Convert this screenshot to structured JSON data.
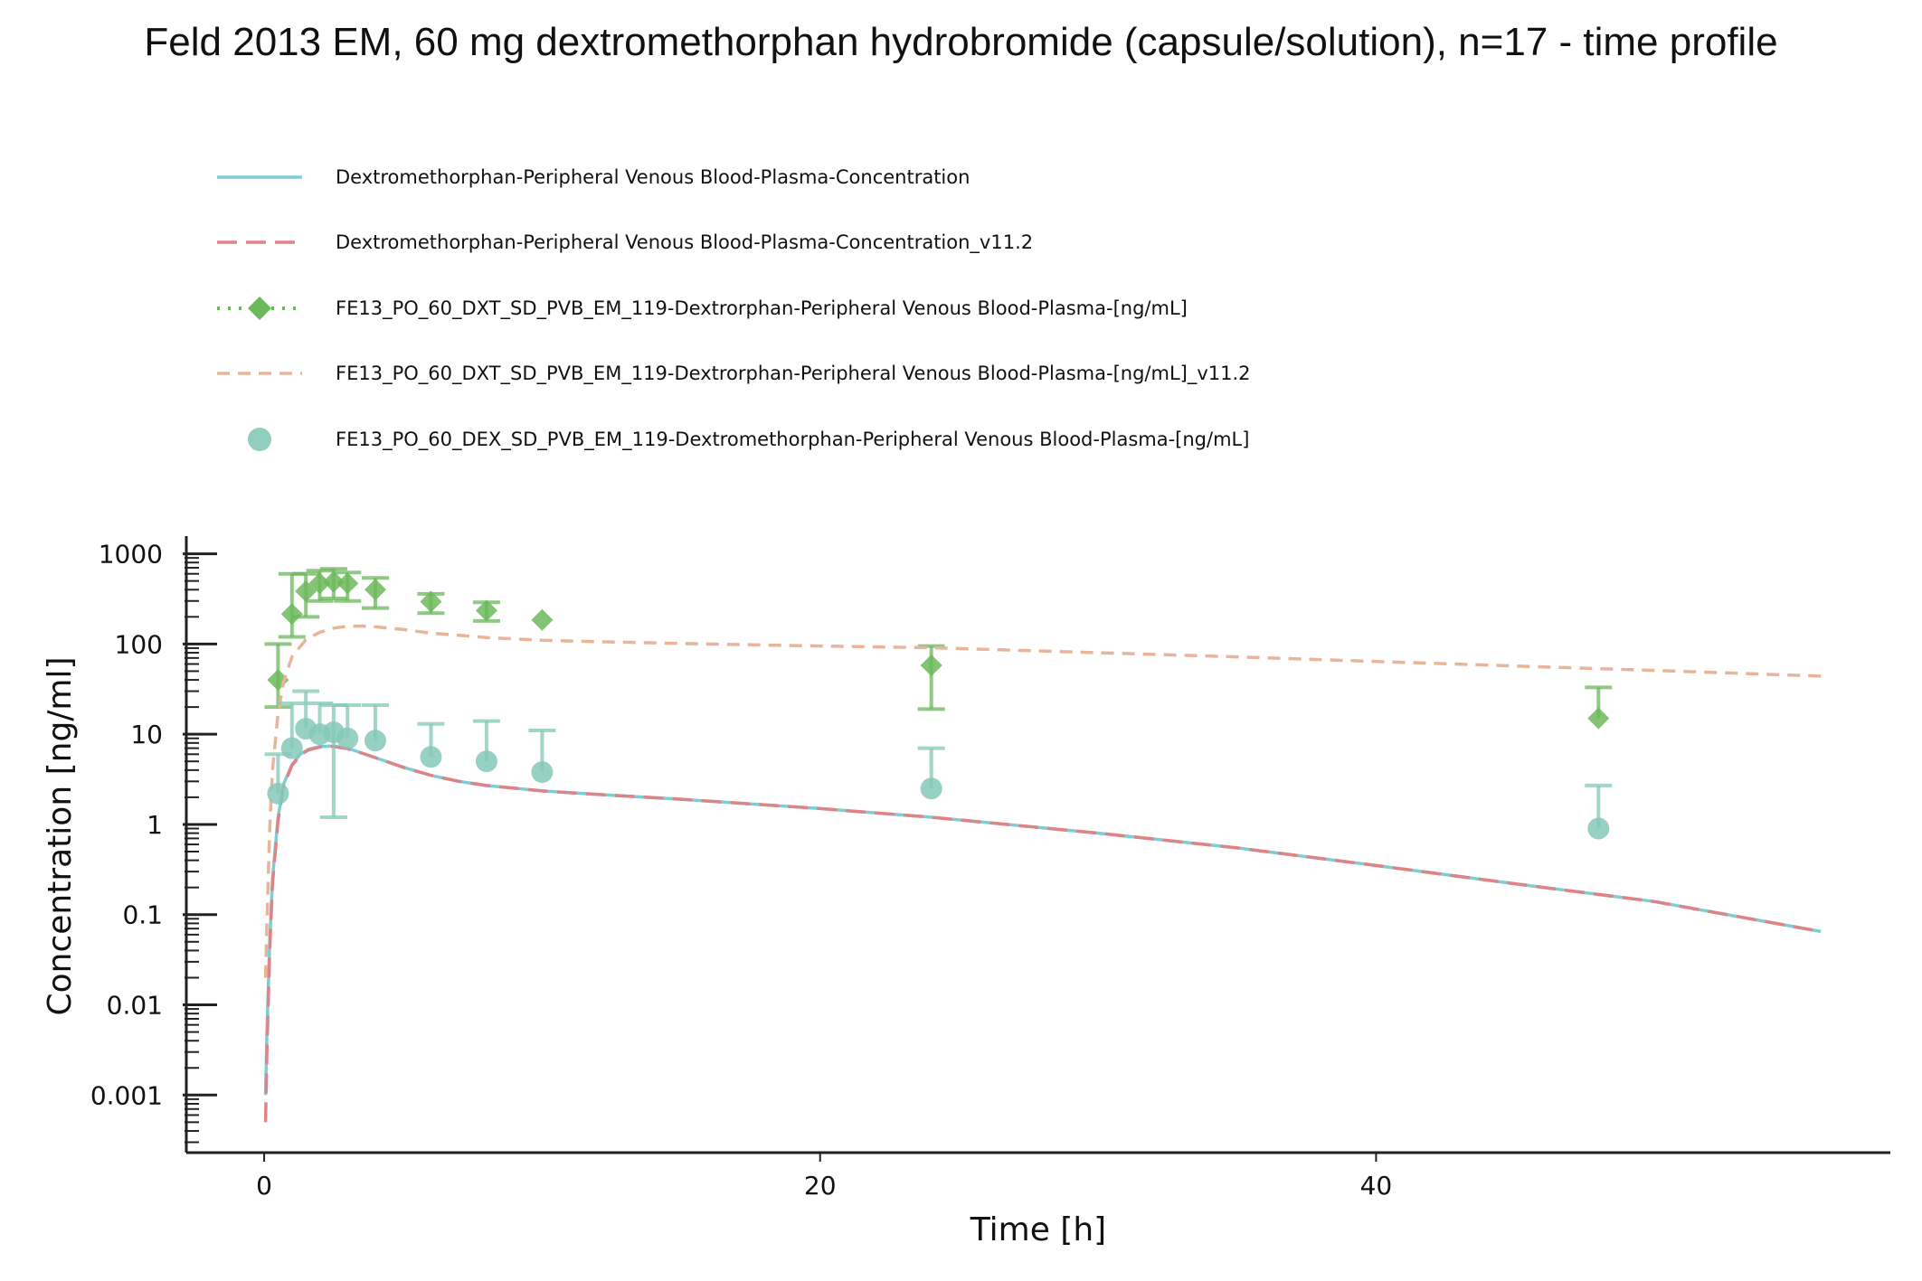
{
  "chart_data": {
    "type": "line",
    "title": "Feld 2013 EM, 60 mg dextromethorphan hydrobromide (capsule/solution), n=17 - time profile",
    "xlabel": "Time [h]",
    "ylabel": "Concentration [ng/ml]",
    "xlim": [
      -2.8,
      58.5
    ],
    "ylim": [
      0.00023,
      1400
    ],
    "yscale": "log",
    "xticks": [
      0,
      20,
      40
    ],
    "xtick_labels": [
      "0",
      "20",
      "40"
    ],
    "yticks": [
      0.001,
      0.01,
      0.1,
      1,
      10,
      100,
      1000
    ],
    "ytick_labels": [
      "0.001",
      "0.01",
      "0.1",
      "1",
      "10",
      "100",
      "1000"
    ],
    "grid": false,
    "legend_position": "top",
    "series": [
      {
        "name": "Dextromethorphan-Peripheral Venous Blood-Plasma-Concentration",
        "kind": "line",
        "style": "solid",
        "color": "#7fcdd4",
        "x": [
          0.05,
          0.1,
          0.2,
          0.3,
          0.5,
          0.7,
          1.0,
          1.3,
          1.6,
          2.0,
          2.5,
          3.0,
          3.5,
          4.0,
          5.0,
          6.0,
          7.0,
          8.0,
          10.0,
          12.0,
          15.0,
          20.0,
          24.0,
          30.0,
          35.0,
          40.0,
          45.0,
          50.0,
          56.0
        ],
        "y": [
          0.001,
          0.005,
          0.05,
          0.25,
          1.2,
          2.8,
          4.6,
          6.0,
          6.8,
          7.3,
          7.4,
          7.0,
          6.2,
          5.5,
          4.3,
          3.5,
          3.0,
          2.7,
          2.35,
          2.15,
          1.9,
          1.5,
          1.2,
          0.8,
          0.55,
          0.35,
          0.22,
          0.14,
          0.065
        ]
      },
      {
        "name": "Dextromethorphan-Peripheral Venous Blood-Plasma-Concentration_v11.2",
        "kind": "line",
        "style": "dashed",
        "color": "#e08387",
        "x": [
          0.05,
          0.1,
          0.2,
          0.3,
          0.5,
          0.7,
          1.0,
          1.3,
          1.6,
          2.0,
          2.5,
          3.0,
          3.5,
          4.0,
          5.0,
          6.0,
          7.0,
          8.0,
          10.0,
          12.0,
          15.0,
          20.0,
          24.0,
          30.0,
          35.0,
          40.0,
          45.0,
          50.0,
          56.0
        ],
        "y": [
          0.0005,
          0.003,
          0.04,
          0.22,
          1.1,
          2.7,
          4.5,
          5.9,
          6.7,
          7.2,
          7.3,
          6.9,
          6.2,
          5.5,
          4.3,
          3.5,
          3.0,
          2.7,
          2.35,
          2.15,
          1.9,
          1.5,
          1.2,
          0.8,
          0.55,
          0.35,
          0.22,
          0.14,
          0.065
        ]
      },
      {
        "name": "FE13_PO_60_DXT_SD_PVB_EM_119-Dextrorphan-Peripheral Venous Blood-Plasma-[ng/mL]",
        "kind": "scatter",
        "marker": "diamond",
        "color": "#6cb85c",
        "x": [
          0.5,
          1.0,
          1.5,
          2.0,
          2.5,
          3.0,
          4.0,
          6.0,
          8.0,
          10.0,
          24.0,
          48.0
        ],
        "y": [
          40,
          215,
          385,
          470,
          490,
          470,
          400,
          295,
          235,
          185,
          58,
          15
        ],
        "err_low": [
          20,
          120,
          200,
          300,
          320,
          300,
          250,
          220,
          180,
          null,
          19,
          null
        ],
        "err_high": [
          100,
          600,
          600,
          650,
          680,
          620,
          540,
          360,
          290,
          null,
          95,
          33
        ]
      },
      {
        "name": "FE13_PO_60_DXT_SD_PVB_EM_119-Dextrorphan-Peripheral Venous Blood-Plasma-[ng/mL]_v11.2",
        "kind": "line",
        "style": "dashed",
        "color": "#e8b59a",
        "x": [
          0.05,
          0.1,
          0.2,
          0.3,
          0.5,
          0.7,
          1.0,
          1.5,
          2.0,
          2.5,
          3.0,
          3.5,
          4.0,
          5.0,
          6.0,
          8.0,
          10.0,
          12.0,
          16.0,
          20.0,
          24.0,
          30.0,
          35.0,
          40.0,
          45.0,
          50.0,
          56.0
        ],
        "y": [
          0.02,
          0.08,
          0.9,
          4,
          17,
          38,
          72,
          112,
          135,
          150,
          157,
          158,
          155,
          145,
          132,
          118,
          110,
          106,
          100,
          95,
          91,
          80,
          72,
          64,
          57,
          51,
          44
        ]
      },
      {
        "name": "FE13_PO_60_DEX_SD_PVB_EM_119-Dextromethorphan-Peripheral Venous Blood-Plasma-[ng/mL]",
        "kind": "scatter",
        "marker": "circle",
        "color": "#84c9b8",
        "x": [
          0.5,
          1.0,
          1.5,
          2.0,
          2.5,
          3.0,
          4.0,
          6.0,
          8.0,
          10.0,
          24.0,
          48.0
        ],
        "y": [
          2.2,
          7,
          11.5,
          10,
          10.5,
          9,
          8.5,
          5.6,
          5,
          3.8,
          2.5,
          0.9
        ],
        "err_low": [
          null,
          null,
          null,
          null,
          1.2,
          null,
          null,
          null,
          null,
          null,
          null,
          null
        ],
        "err_high": [
          6,
          22,
          30,
          22,
          21,
          21,
          21,
          13,
          14,
          11,
          7,
          2.7
        ]
      }
    ]
  }
}
